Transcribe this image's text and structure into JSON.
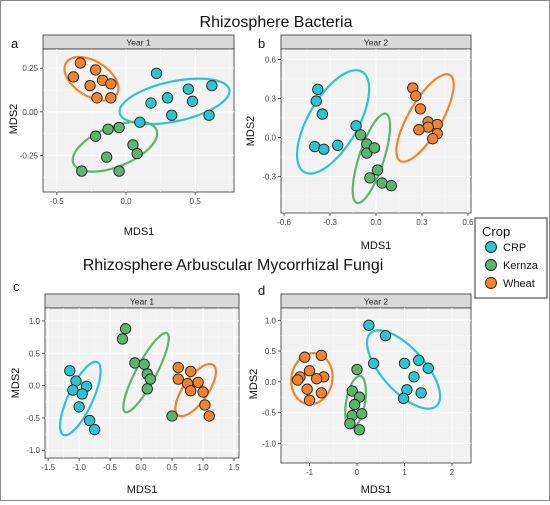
{
  "sections": {
    "top_title": "Rhizosphere Bacteria",
    "bottom_title": "Rhizosphere Arbuscular Mycorrhizal Fungi"
  },
  "legend": {
    "title": "Crop",
    "entries": [
      {
        "label": "CRP",
        "color": "#2ec4cf"
      },
      {
        "label": "Kernza",
        "color": "#5cb56f"
      },
      {
        "label": "Wheat",
        "color": "#f0832f"
      }
    ]
  },
  "colors": {
    "CRP": "#2ec4cf",
    "Kernza": "#5cb56f",
    "Wheat": "#f0832f",
    "strip": "#d9d9d9",
    "panel_bg": "#f2f2f2",
    "grid": "#ffffff"
  },
  "chart_data": [
    {
      "type": "scatter",
      "panel_letter": "a",
      "strip": "Year 1",
      "xlabel": "MDS1",
      "ylabel": "MDS2",
      "xlim": [
        -0.6,
        0.78
      ],
      "ylim": [
        -0.46,
        0.36
      ],
      "xticks": [
        -0.5,
        0.0,
        0.5
      ],
      "xtick_labels": [
        "-0.5",
        "0.0",
        "0.5"
      ],
      "yticks": [
        -0.25,
        0.0,
        0.25
      ],
      "ytick_labels": [
        "-0.25",
        "0.00",
        "0.25"
      ],
      "series": [
        {
          "name": "CRP",
          "points": [
            [
              0.22,
              0.22
            ],
            [
              0.45,
              0.13
            ],
            [
              0.62,
              0.15
            ],
            [
              0.3,
              0.08
            ],
            [
              0.48,
              0.06
            ],
            [
              0.18,
              0.05
            ],
            [
              0.33,
              -0.02
            ],
            [
              0.6,
              -0.02
            ],
            [
              0.1,
              -0.06
            ]
          ],
          "ellipse": {
            "cx": 0.35,
            "cy": 0.06,
            "rx": 0.45,
            "ry": 0.16,
            "angle": 12
          }
        },
        {
          "name": "Kernza",
          "points": [
            [
              -0.13,
              -0.1
            ],
            [
              -0.05,
              -0.09
            ],
            [
              -0.22,
              -0.14
            ],
            [
              0.05,
              -0.19
            ],
            [
              0.08,
              -0.24
            ],
            [
              -0.14,
              -0.26
            ],
            [
              -0.32,
              -0.34
            ],
            [
              -0.05,
              -0.34
            ]
          ],
          "ellipse": {
            "cx": -0.08,
            "cy": -0.2,
            "rx": 0.36,
            "ry": 0.16,
            "angle": 22
          }
        },
        {
          "name": "Wheat",
          "points": [
            [
              -0.33,
              0.28
            ],
            [
              -0.22,
              0.24
            ],
            [
              -0.38,
              0.2
            ],
            [
              -0.17,
              0.18
            ],
            [
              -0.11,
              0.16
            ],
            [
              -0.26,
              0.15
            ],
            [
              -0.21,
              0.08
            ],
            [
              -0.11,
              0.08
            ]
          ],
          "ellipse": {
            "cx": -0.25,
            "cy": 0.19,
            "rx": 0.24,
            "ry": 0.14,
            "angle": -32
          }
        }
      ]
    },
    {
      "type": "scatter",
      "panel_letter": "b",
      "strip": "Year 2",
      "xlabel": "MDS1",
      "ylabel": "MDS2",
      "xlim": [
        -0.62,
        0.62
      ],
      "ylim": [
        -0.58,
        0.68
      ],
      "xticks": [
        -0.6,
        -0.3,
        0.0,
        0.3,
        0.6
      ],
      "xtick_labels": [
        "-0.6",
        "-0.3",
        "0.0",
        "0.3",
        "0.6"
      ],
      "yticks": [
        -0.3,
        0.0,
        0.3,
        0.6
      ],
      "ytick_labels": [
        "-0.3",
        "0.0",
        "0.3",
        "0.6"
      ],
      "series": [
        {
          "name": "CRP",
          "points": [
            [
              -0.38,
              0.37
            ],
            [
              -0.39,
              0.28
            ],
            [
              -0.35,
              0.18
            ],
            [
              -0.4,
              -0.07
            ],
            [
              -0.34,
              -0.09
            ],
            [
              -0.25,
              -0.06
            ],
            [
              -0.13,
              0.09
            ]
          ],
          "ellipse": {
            "cx": -0.28,
            "cy": 0.12,
            "rx": 0.42,
            "ry": 0.18,
            "angle": 60
          }
        },
        {
          "name": "Kernza",
          "points": [
            [
              -0.1,
              0.02
            ],
            [
              -0.06,
              -0.05
            ],
            [
              -0.06,
              -0.12
            ],
            [
              -0.01,
              -0.08
            ],
            [
              -0.04,
              -0.31
            ],
            [
              0.01,
              -0.25
            ],
            [
              0.04,
              -0.35
            ],
            [
              0.1,
              -0.37
            ]
          ],
          "ellipse": {
            "cx": -0.03,
            "cy": -0.16,
            "rx": 0.34,
            "ry": 0.09,
            "angle": 72
          }
        },
        {
          "name": "Wheat",
          "points": [
            [
              0.24,
              0.38
            ],
            [
              0.26,
              0.32
            ],
            [
              0.29,
              0.22
            ],
            [
              0.34,
              0.12
            ],
            [
              0.4,
              0.1
            ],
            [
              0.34,
              0.08
            ],
            [
              0.28,
              0.06
            ],
            [
              0.4,
              0.03
            ],
            [
              0.37,
              -0.01
            ]
          ],
          "ellipse": {
            "cx": 0.32,
            "cy": 0.15,
            "rx": 0.36,
            "ry": 0.12,
            "angle": 60
          }
        }
      ]
    },
    {
      "type": "scatter",
      "panel_letter": "c",
      "strip": "Year 1",
      "xlabel": "MDS1",
      "ylabel": "MDS2",
      "xlim": [
        -1.55,
        1.58
      ],
      "ylim": [
        -1.12,
        1.2
      ],
      "xticks": [
        -1.5,
        -1.0,
        -0.5,
        0.0,
        0.5,
        1.0,
        1.5
      ],
      "xtick_labels": [
        "-1.5",
        "-1.0",
        "-0.5",
        "0.0",
        "0.5",
        "1.0",
        "1.5"
      ],
      "yticks": [
        -1.0,
        -0.5,
        0.0,
        0.5,
        1.0
      ],
      "ytick_labels": [
        "-1.0",
        "-0.5",
        "0.0",
        "0.5",
        "1.0"
      ],
      "series": [
        {
          "name": "CRP",
          "points": [
            [
              -1.15,
              0.23
            ],
            [
              -1.05,
              0.07
            ],
            [
              -0.88,
              -0.01
            ],
            [
              -1.1,
              -0.07
            ],
            [
              -0.95,
              -0.13
            ],
            [
              -1.0,
              -0.33
            ],
            [
              -0.83,
              -0.54
            ],
            [
              -0.75,
              -0.68
            ]
          ],
          "ellipse": {
            "cx": -0.98,
            "cy": -0.2,
            "rx": 0.72,
            "ry": 0.22,
            "angle": 65
          }
        },
        {
          "name": "Kernza",
          "points": [
            [
              -0.25,
              0.88
            ],
            [
              -0.3,
              0.72
            ],
            [
              -0.1,
              0.35
            ],
            [
              0.05,
              0.33
            ],
            [
              0.1,
              0.18
            ],
            [
              0.15,
              0.1
            ],
            [
              0.1,
              -0.05
            ],
            [
              0.5,
              -0.47
            ]
          ],
          "ellipse": {
            "cx": 0.08,
            "cy": 0.2,
            "rx": 0.8,
            "ry": 0.18,
            "angle": 62
          }
        },
        {
          "name": "Wheat",
          "points": [
            [
              0.6,
              0.28
            ],
            [
              0.8,
              0.22
            ],
            [
              0.6,
              0.1
            ],
            [
              0.75,
              0.03
            ],
            [
              0.92,
              0.05
            ],
            [
              1.0,
              -0.1
            ],
            [
              0.8,
              -0.08
            ],
            [
              1.03,
              -0.3
            ],
            [
              1.1,
              -0.47
            ]
          ],
          "ellipse": {
            "cx": 0.88,
            "cy": -0.07,
            "rx": 0.55,
            "ry": 0.22,
            "angle": 55
          }
        }
      ]
    },
    {
      "type": "scatter",
      "panel_letter": "d",
      "strip": "Year 2",
      "xlabel": "MDS1",
      "ylabel": "MDS2",
      "xlim": [
        -1.6,
        2.4
      ],
      "ylim": [
        -1.32,
        1.2
      ],
      "xticks": [
        -1,
        0,
        1,
        2
      ],
      "xtick_labels": [
        "-1",
        "0",
        "1",
        "2"
      ],
      "yticks": [
        -1.0,
        -0.5,
        0.0,
        0.5,
        1.0
      ],
      "ytick_labels": [
        "-1.0",
        "-0.5",
        "0.0",
        "0.5",
        "1.0"
      ],
      "series": [
        {
          "name": "CRP",
          "points": [
            [
              0.25,
              0.92
            ],
            [
              0.6,
              0.75
            ],
            [
              0.35,
              0.3
            ],
            [
              1.3,
              0.35
            ],
            [
              1.0,
              0.3
            ],
            [
              1.5,
              0.22
            ],
            [
              1.2,
              0.08
            ],
            [
              1.05,
              -0.13
            ],
            [
              1.35,
              -0.18
            ],
            [
              0.98,
              -0.27
            ]
          ],
          "ellipse": {
            "cx": 0.98,
            "cy": 0.2,
            "rx": 1.15,
            "ry": 0.5,
            "angle": -48
          }
        },
        {
          "name": "Kernza",
          "points": [
            [
              0.0,
              0.2
            ],
            [
              -0.1,
              -0.15
            ],
            [
              0.05,
              -0.25
            ],
            [
              -0.05,
              -0.37
            ],
            [
              -0.1,
              -0.55
            ],
            [
              0.1,
              -0.52
            ],
            [
              -0.15,
              -0.68
            ],
            [
              0.05,
              -0.78
            ]
          ],
          "ellipse": {
            "cx": -0.03,
            "cy": -0.33,
            "rx": 0.62,
            "ry": 0.22,
            "angle": 80
          }
        },
        {
          "name": "Wheat",
          "points": [
            [
              -1.1,
              0.4
            ],
            [
              -0.75,
              0.43
            ],
            [
              -1.0,
              0.18
            ],
            [
              -0.7,
              0.08
            ],
            [
              -1.2,
              0.08
            ],
            [
              -1.25,
              0.03
            ],
            [
              -0.85,
              0.05
            ],
            [
              -1.05,
              -0.12
            ],
            [
              -0.75,
              -0.18
            ],
            [
              -1.0,
              -0.3
            ]
          ],
          "ellipse": {
            "cx": -0.95,
            "cy": 0.05,
            "rx": 0.6,
            "ry": 0.48,
            "angle": 80
          }
        }
      ]
    }
  ]
}
